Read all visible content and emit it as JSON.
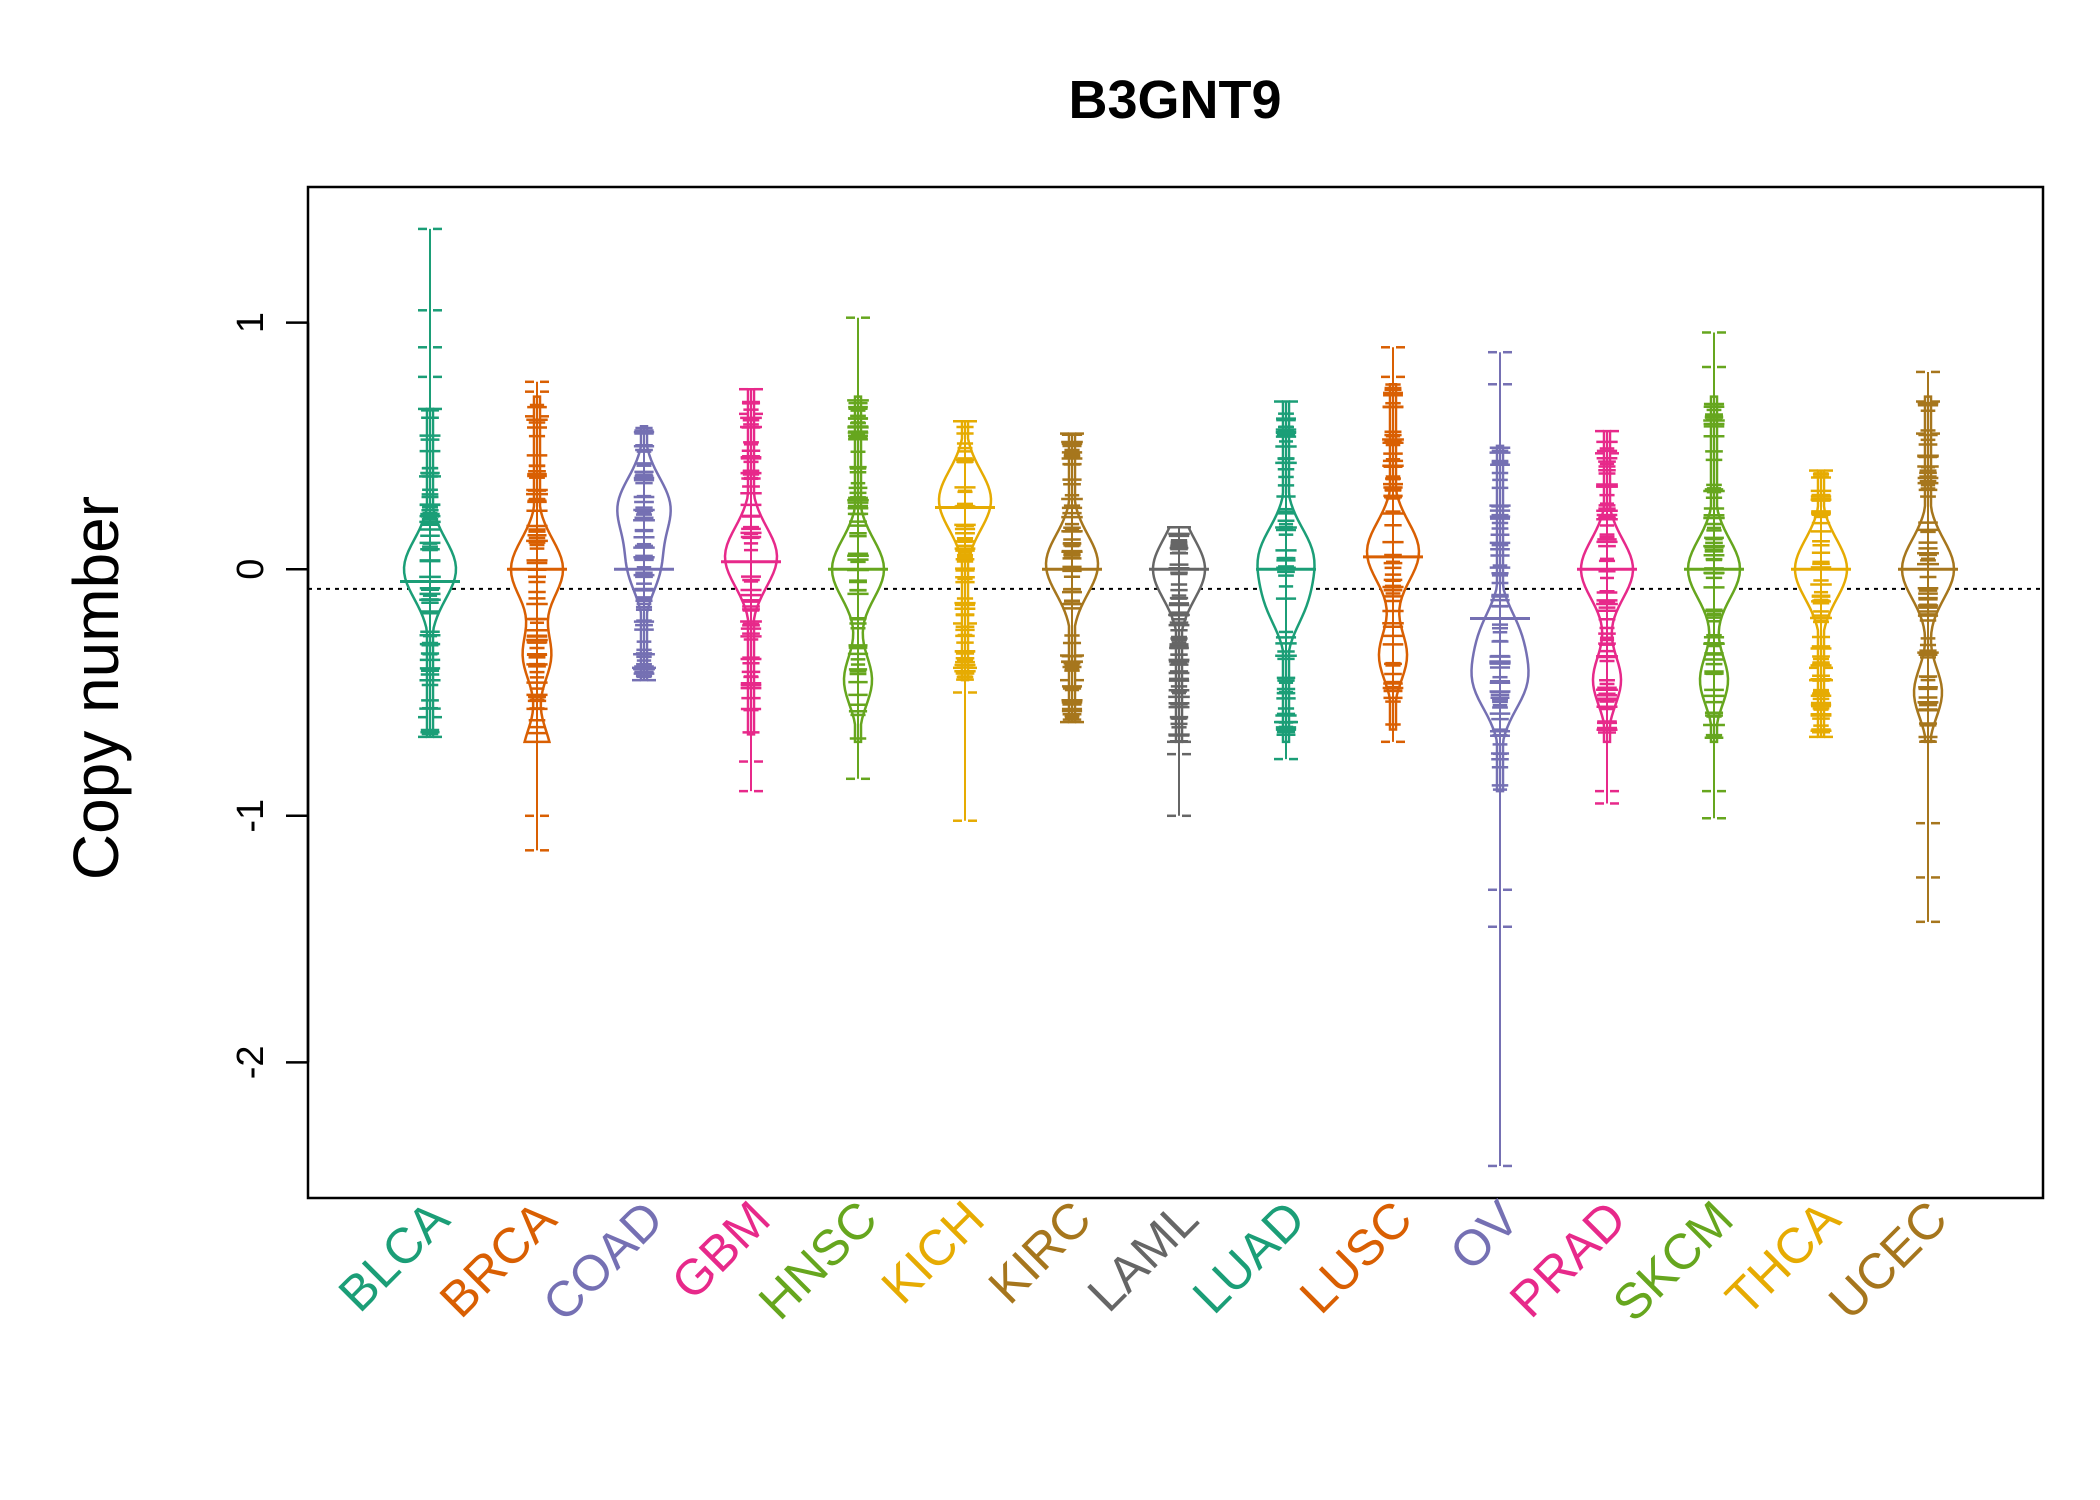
{
  "chart_data": {
    "type": "beanplot",
    "title": "B3GNT9",
    "xlabel": "",
    "ylabel": "Copy number",
    "ylim": [
      -2.55,
      1.55
    ],
    "yticks": [
      {
        "value": 1,
        "label": "1"
      },
      {
        "value": 0,
        "label": "0"
      },
      {
        "value": -1,
        "label": "-1"
      },
      {
        "value": -2,
        "label": "-2"
      }
    ],
    "reference_line": -0.08,
    "categories": [
      {
        "name": "BLCA",
        "color": "#1B9E77",
        "median": -0.05,
        "density_peaks": [
          0.0
        ],
        "outliers": [
          1.38,
          1.05,
          0.9,
          0.78,
          0.65,
          -0.6,
          -0.68
        ],
        "range": [
          -0.68,
          1.38
        ]
      },
      {
        "name": "BRCA",
        "color": "#D95F02",
        "median": 0.0,
        "density_peaks": [
          0.0,
          -0.35,
          -0.75
        ],
        "outliers": [
          0.76,
          0.72,
          0.62,
          -1.0,
          -1.14
        ],
        "range": [
          -1.14,
          0.76
        ]
      },
      {
        "name": "COAD",
        "color": "#7570B3",
        "median": 0.0,
        "density_peaks": [
          0.25,
          0.0
        ],
        "outliers": [
          -0.4,
          -0.45
        ],
        "range": [
          -0.45,
          0.58
        ]
      },
      {
        "name": "GBM",
        "color": "#E7298A",
        "median": 0.03,
        "density_peaks": [
          0.05
        ],
        "outliers": [
          0.73,
          0.63,
          -0.78,
          -0.9
        ],
        "range": [
          -0.9,
          0.73
        ]
      },
      {
        "name": "HNSC",
        "color": "#66A61E",
        "median": 0.0,
        "density_peaks": [
          0.0,
          -0.45
        ],
        "outliers": [
          1.02,
          -0.85
        ],
        "range": [
          -0.85,
          1.02
        ]
      },
      {
        "name": "KICH",
        "color": "#E6AB02",
        "median": 0.25,
        "density_peaks": [
          0.28
        ],
        "outliers": [
          0.6,
          -0.22,
          -0.4,
          -0.5,
          -1.02
        ],
        "range": [
          -1.02,
          0.6
        ]
      },
      {
        "name": "KIRC",
        "color": "#A6761D",
        "median": 0.0,
        "density_peaks": [
          0.02
        ],
        "outliers": [
          0.55,
          -0.35,
          -0.45,
          -0.62
        ],
        "range": [
          -0.62,
          0.55
        ]
      },
      {
        "name": "LAML",
        "color": "#666666",
        "median": 0.0,
        "density_peaks": [
          0.0
        ],
        "outliers": [
          0.17,
          -0.7,
          -0.75,
          -1.0
        ],
        "range": [
          -1.0,
          0.17
        ]
      },
      {
        "name": "LUAD",
        "color": "#1B9E77",
        "median": 0.0,
        "density_peaks": [
          0.05,
          -0.15
        ],
        "outliers": [
          0.68,
          -0.62,
          -0.77
        ],
        "range": [
          -0.77,
          0.68
        ]
      },
      {
        "name": "LUSC",
        "color": "#D95F02",
        "median": 0.05,
        "density_peaks": [
          0.07,
          -0.35
        ],
        "outliers": [
          0.9,
          0.78,
          -0.7
        ],
        "range": [
          -0.7,
          0.9
        ]
      },
      {
        "name": "OV",
        "color": "#7570B3",
        "median": -0.2,
        "density_peaks": [
          -0.45,
          -0.25
        ],
        "outliers": [
          0.88,
          0.75,
          -1.3,
          -1.45,
          -2.42
        ],
        "range": [
          -2.42,
          0.88
        ]
      },
      {
        "name": "PRAD",
        "color": "#E7298A",
        "median": 0.0,
        "density_peaks": [
          0.0,
          -0.45
        ],
        "outliers": [
          0.56,
          0.47,
          -0.9,
          -0.95
        ],
        "range": [
          -0.95,
          0.56
        ]
      },
      {
        "name": "SKCM",
        "color": "#66A61E",
        "median": 0.0,
        "density_peaks": [
          0.0,
          -0.45
        ],
        "outliers": [
          0.96,
          0.82,
          -0.9,
          -1.01
        ],
        "range": [
          -1.01,
          0.96
        ]
      },
      {
        "name": "THCA",
        "color": "#E6AB02",
        "median": 0.0,
        "density_peaks": [
          0.0
        ],
        "outliers": [
          0.4,
          -0.4,
          -0.45,
          -0.68
        ],
        "range": [
          -0.68,
          0.4
        ]
      },
      {
        "name": "UCEC",
        "color": "#A6761D",
        "median": 0.0,
        "density_peaks": [
          0.0,
          -0.5
        ],
        "outliers": [
          0.8,
          0.68,
          0.55,
          -1.03,
          -1.25,
          -1.43
        ],
        "range": [
          -1.43,
          0.8
        ]
      }
    ]
  }
}
